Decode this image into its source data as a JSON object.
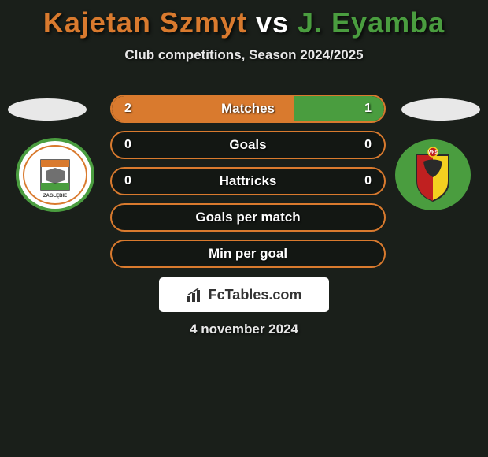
{
  "title": {
    "player1": "Kajetan Szmyt",
    "vs": "vs",
    "player2": "J. Eyamba",
    "player1_color": "#d97a2e",
    "vs_color": "#ffffff",
    "player2_color": "#4a9d3f"
  },
  "subtitle": "Club competitions, Season 2024/2025",
  "colors": {
    "background": "#1a1f1a",
    "orange": "#d97a2e",
    "green": "#4a9d3f",
    "text_light": "#e8e8e8"
  },
  "stats": [
    {
      "label": "Matches",
      "left_value": "2",
      "right_value": "1",
      "left_pct": 67,
      "right_pct": 33,
      "border_color": "#d97a2e",
      "left_fill": "#d97a2e",
      "right_fill": "#4a9d3f"
    },
    {
      "label": "Goals",
      "left_value": "0",
      "right_value": "0",
      "left_pct": 0,
      "right_pct": 0,
      "border_color": "#d97a2e",
      "left_fill": "#d97a2e",
      "right_fill": "#4a9d3f"
    },
    {
      "label": "Hattricks",
      "left_value": "0",
      "right_value": "0",
      "left_pct": 0,
      "right_pct": 0,
      "border_color": "#d97a2e",
      "left_fill": "#d97a2e",
      "right_fill": "#4a9d3f"
    },
    {
      "label": "Goals per match",
      "left_value": "",
      "right_value": "",
      "left_pct": 0,
      "right_pct": 0,
      "border_color": "#d97a2e",
      "left_fill": "#d97a2e",
      "right_fill": "#4a9d3f"
    },
    {
      "label": "Min per goal",
      "left_value": "",
      "right_value": "",
      "left_pct": 0,
      "right_pct": 0,
      "border_color": "#d97a2e",
      "left_fill": "#d97a2e",
      "right_fill": "#4a9d3f"
    }
  ],
  "crest_left": {
    "name": "Zagłębie Lubin",
    "ring_outer": "#4a9d3f",
    "ring_inner": "#ffffff",
    "accent": "#d97a2e"
  },
  "crest_right": {
    "name": "Śląsk Wrocław",
    "ring": "#4a9d3f",
    "shield_stripes": [
      "#c02020",
      "#f4d020",
      "#2a2a2a"
    ]
  },
  "fctables_label": "FcTables.com",
  "date": "4 november 2024"
}
